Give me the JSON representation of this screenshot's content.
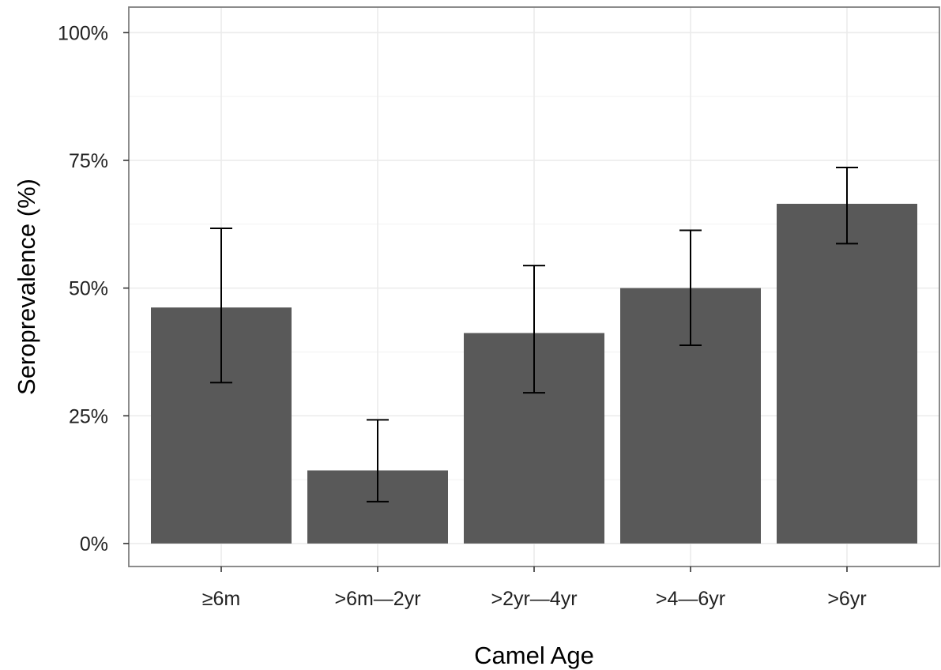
{
  "chart_data": {
    "type": "bar",
    "title": "",
    "xlabel": "Camel Age",
    "ylabel": "Seroprevalence (%)",
    "categories": [
      "≥6m",
      ">6m—2yr",
      ">2yr—4yr",
      ">4—6yr",
      ">6yr"
    ],
    "values": [
      46.2,
      14.3,
      41.2,
      50.0,
      66.5
    ],
    "error_low": [
      31.5,
      8.2,
      29.5,
      38.8,
      58.7
    ],
    "error_high": [
      61.7,
      24.2,
      54.4,
      61.3,
      73.6
    ],
    "ylim": [
      -4.5,
      105
    ],
    "yticks": [
      0,
      25,
      50,
      75,
      100
    ],
    "ytick_labels": [
      "0%",
      "25%",
      "50%",
      "75%",
      "100%"
    ],
    "grid": true,
    "legend": "none",
    "colors": {
      "bar": "#595959",
      "grid": "#ebebeb",
      "error_bar": "#000000",
      "panel_border": "#7f7f7f"
    }
  }
}
